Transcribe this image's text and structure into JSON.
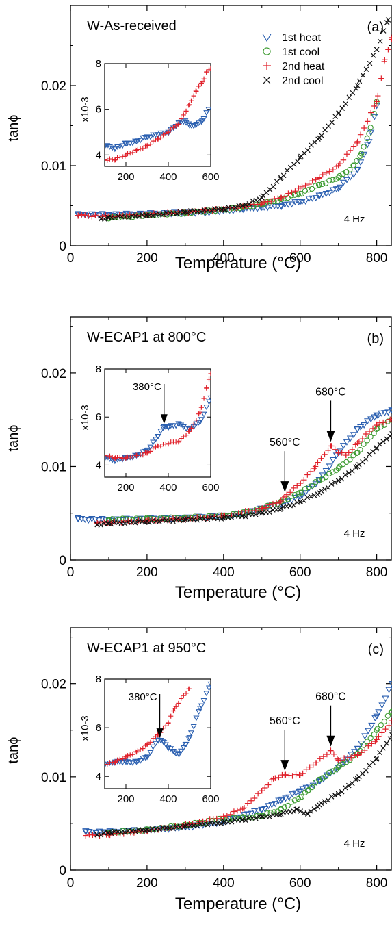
{
  "legend": [
    {
      "name": "1st heat",
      "color": "#2a5fb0",
      "marker": "triangle-down"
    },
    {
      "name": "1st cool",
      "color": "#3a9a2e",
      "marker": "circle"
    },
    {
      "name": "2nd heat",
      "color": "#e0202a",
      "marker": "plus"
    },
    {
      "name": "2nd cool",
      "color": "#111111",
      "marker": "cross"
    }
  ],
  "chart_data": [
    {
      "type": "scatter",
      "panel": "(a)",
      "title": "W-As-received",
      "xlabel": "Temperature (°C)",
      "ylabel": "tanϕ",
      "xlim": [
        0,
        840
      ],
      "ylim": [
        0,
        0.03
      ],
      "xticks": [
        "0",
        "200",
        "400",
        "600",
        "800"
      ],
      "yticks": [
        "0",
        "0.01",
        "0.02"
      ],
      "frequency": "4 Hz",
      "annotations": [],
      "series": [
        {
          "name": "1st heat",
          "x": [
            20,
            100,
            200,
            300,
            350,
            400,
            450,
            500,
            550,
            600,
            650,
            700,
            750,
            780,
            800
          ],
          "y": [
            0.0039,
            0.0039,
            0.004,
            0.0041,
            0.0042,
            0.0044,
            0.0046,
            0.0048,
            0.005,
            0.0055,
            0.0062,
            0.0072,
            0.0095,
            0.013,
            0.0175
          ]
        },
        {
          "name": "1st cool",
          "x": [
            800,
            780,
            760,
            740,
            720,
            700,
            650,
            600,
            550,
            500,
            450,
            400,
            300,
            200,
            100
          ],
          "y": [
            0.018,
            0.014,
            0.0115,
            0.01,
            0.0092,
            0.0085,
            0.0076,
            0.0065,
            0.0058,
            0.0052,
            0.0048,
            0.0045,
            0.0041,
            0.0038,
            0.0035
          ]
        },
        {
          "name": "2nd heat",
          "x": [
            20,
            100,
            200,
            300,
            350,
            400,
            450,
            500,
            550,
            600,
            650,
            700,
            750,
            800,
            820,
            840
          ],
          "y": [
            0.0038,
            0.0037,
            0.0039,
            0.0042,
            0.0044,
            0.0046,
            0.0049,
            0.0053,
            0.006,
            0.0072,
            0.0085,
            0.01,
            0.013,
            0.018,
            0.023,
            0.026
          ]
        },
        {
          "name": "2nd cool",
          "x": [
            830,
            800,
            750,
            700,
            650,
            600,
            550,
            500,
            450,
            400,
            300,
            200,
            100,
            80
          ],
          "y": [
            0.0282,
            0.0245,
            0.02,
            0.0165,
            0.0135,
            0.011,
            0.0085,
            0.006,
            0.005,
            0.0046,
            0.0042,
            0.0038,
            0.0035,
            0.0034
          ]
        }
      ],
      "inset": {
        "xlim": [
          100,
          600
        ],
        "ylim": [
          3.5,
          8
        ],
        "xticks": [
          "200",
          "400",
          "600"
        ],
        "yticks": [
          "4",
          "6",
          "8"
        ],
        "ylabel": "x10-3",
        "series": [
          {
            "name": "1st heat",
            "x": [
              100,
              150,
              200,
              250,
              300,
              350,
              400,
              450,
              480,
              500,
              530,
              560,
              590
            ],
            "y": [
              4.4,
              4.3,
              4.5,
              4.6,
              4.8,
              4.9,
              5.0,
              5.4,
              5.5,
              5.3,
              5.3,
              5.5,
              6.0
            ]
          },
          {
            "name": "2nd heat",
            "x": [
              100,
              150,
              200,
              250,
              300,
              350,
              400,
              450,
              500,
              530,
              560,
              580,
              600
            ],
            "y": [
              3.8,
              3.8,
              4.0,
              4.2,
              4.4,
              4.7,
              5.0,
              5.4,
              6.2,
              6.8,
              7.2,
              7.6,
              7.8
            ]
          }
        ]
      }
    },
    {
      "type": "scatter",
      "panel": "(b)",
      "title": "W-ECAP1 at 800°C",
      "xlabel": "Temperature (°C)",
      "ylabel": "tanϕ",
      "xlim": [
        0,
        840
      ],
      "ylim": [
        0,
        0.026
      ],
      "xticks": [
        "0",
        "200",
        "400",
        "600",
        "800"
      ],
      "yticks": [
        "0",
        "0.01",
        "0.02"
      ],
      "frequency": "4 Hz",
      "annotations": [
        {
          "text": "560°C",
          "x": 560,
          "y": 0.0068
        },
        {
          "text": "680°C",
          "x": 680,
          "y": 0.0122
        }
      ],
      "series": [
        {
          "name": "1st heat",
          "x": [
            20,
            100,
            200,
            300,
            400,
            450,
            500,
            550,
            600,
            650,
            700,
            750,
            800,
            840
          ],
          "y": [
            0.0044,
            0.0043,
            0.0044,
            0.0045,
            0.0047,
            0.005,
            0.0055,
            0.006,
            0.0068,
            0.0085,
            0.0115,
            0.014,
            0.0155,
            0.016
          ]
        },
        {
          "name": "1st cool",
          "x": [
            840,
            800,
            750,
            700,
            650,
            600,
            550,
            500,
            450,
            400,
            300,
            200,
            100
          ],
          "y": [
            0.015,
            0.014,
            0.0115,
            0.0098,
            0.0085,
            0.0072,
            0.0062,
            0.0055,
            0.005,
            0.0047,
            0.0045,
            0.0044,
            0.0043
          ]
        },
        {
          "name": "2nd heat",
          "x": [
            70,
            100,
            200,
            300,
            400,
            500,
            550,
            560,
            600,
            640,
            680,
            700,
            720,
            750,
            800,
            840
          ],
          "y": [
            0.004,
            0.004,
            0.0042,
            0.0044,
            0.0047,
            0.0055,
            0.0063,
            0.0068,
            0.0082,
            0.01,
            0.0122,
            0.0115,
            0.0112,
            0.0125,
            0.0145,
            0.015
          ]
        },
        {
          "name": "2nd cool",
          "x": [
            840,
            800,
            750,
            700,
            650,
            600,
            550,
            500,
            450,
            400,
            300,
            200,
            100,
            70
          ],
          "y": [
            0.0135,
            0.012,
            0.01,
            0.0085,
            0.0072,
            0.0062,
            0.0055,
            0.005,
            0.0047,
            0.0045,
            0.0043,
            0.0041,
            0.0039,
            0.0038
          ]
        }
      ],
      "inset": {
        "xlim": [
          100,
          600
        ],
        "ylim": [
          3.5,
          8
        ],
        "xticks": [
          "200",
          "400",
          "600"
        ],
        "yticks": [
          "4",
          "6",
          "8"
        ],
        "ylabel": "x10-3",
        "annotation": {
          "text": "380°C",
          "x": 380
        },
        "series": [
          {
            "name": "1st heat",
            "x": [
              100,
              150,
              200,
              250,
              300,
              350,
              380,
              400,
              450,
              500,
              550,
              600
            ],
            "y": [
              4.3,
              4.2,
              4.3,
              4.4,
              4.6,
              5.2,
              5.6,
              5.6,
              5.7,
              5.5,
              5.8,
              6.8
            ]
          },
          {
            "name": "2nd heat",
            "x": [
              100,
              150,
              200,
              250,
              300,
              350,
              400,
              450,
              500,
              550,
              580,
              600
            ],
            "y": [
              4.4,
              4.3,
              4.3,
              4.4,
              4.5,
              4.8,
              4.9,
              5.0,
              5.4,
              6.2,
              7.2,
              7.8
            ]
          }
        ]
      }
    },
    {
      "type": "scatter",
      "panel": "(c)",
      "title": "W-ECAP1 at 950°C",
      "xlabel": "Temperature (°C)",
      "ylabel": "tanϕ",
      "xlim": [
        0,
        840
      ],
      "ylim": [
        0,
        0.026
      ],
      "xticks": [
        "0",
        "200",
        "400",
        "600",
        "800"
      ],
      "yticks": [
        "0",
        "0.01",
        "0.02"
      ],
      "frequency": "4 Hz",
      "annotations": [
        {
          "text": "560°C",
          "x": 560,
          "y": 0.0102
        },
        {
          "text": "680°C",
          "x": 680,
          "y": 0.0128
        }
      ],
      "series": [
        {
          "name": "1st heat",
          "x": [
            40,
            100,
            200,
            300,
            400,
            500,
            550,
            600,
            650,
            700,
            750,
            800,
            840
          ],
          "y": [
            0.0041,
            0.0041,
            0.0043,
            0.0046,
            0.0052,
            0.0065,
            0.0075,
            0.0085,
            0.0095,
            0.011,
            0.013,
            0.0165,
            0.02
          ]
        },
        {
          "name": "1st cool",
          "x": [
            840,
            800,
            750,
            700,
            650,
            620,
            600,
            550,
            500,
            450,
            400,
            300,
            200,
            100
          ],
          "y": [
            0.017,
            0.015,
            0.0125,
            0.011,
            0.0097,
            0.0085,
            0.0078,
            0.0065,
            0.0058,
            0.0056,
            0.0055,
            0.0048,
            0.0043,
            0.004
          ]
        },
        {
          "name": "2nd heat",
          "x": [
            40,
            100,
            200,
            300,
            400,
            450,
            500,
            530,
            560,
            600,
            640,
            680,
            700,
            750,
            800,
            840
          ],
          "y": [
            0.0037,
            0.0038,
            0.0042,
            0.0048,
            0.0057,
            0.0066,
            0.0085,
            0.0098,
            0.0102,
            0.0102,
            0.0115,
            0.0128,
            0.0118,
            0.0123,
            0.014,
            0.016
          ]
        },
        {
          "name": "2nd cool",
          "x": [
            840,
            800,
            750,
            700,
            650,
            620,
            590,
            550,
            500,
            450,
            400,
            300,
            200,
            100,
            70
          ],
          "y": [
            0.0145,
            0.012,
            0.0098,
            0.0082,
            0.007,
            0.006,
            0.0065,
            0.006,
            0.0057,
            0.0054,
            0.0051,
            0.0047,
            0.0043,
            0.004,
            0.0038
          ]
        }
      ],
      "inset": {
        "xlim": [
          100,
          600
        ],
        "ylim": [
          3.5,
          8
        ],
        "xticks": [
          "200",
          "400",
          "600"
        ],
        "yticks": [
          "4",
          "6",
          "8"
        ],
        "ylabel": "x10-3",
        "annotation": {
          "text": "380°C",
          "x": 360
        },
        "series": [
          {
            "name": "1st heat",
            "x": [
              100,
              150,
              200,
              250,
              300,
              350,
              380,
              400,
              430,
              450,
              480,
              500,
              550,
              600
            ],
            "y": [
              4.5,
              4.6,
              4.6,
              4.6,
              4.8,
              5.5,
              5.4,
              5.2,
              5.0,
              4.9,
              5.3,
              5.6,
              6.8,
              7.8
            ]
          },
          {
            "name": "2nd heat",
            "x": [
              100,
              150,
              200,
              250,
              300,
              350,
              400,
              430,
              460,
              500
            ],
            "y": [
              4.5,
              4.6,
              4.8,
              5.0,
              5.3,
              5.7,
              6.2,
              6.8,
              7.2,
              7.6
            ]
          }
        ]
      }
    }
  ]
}
